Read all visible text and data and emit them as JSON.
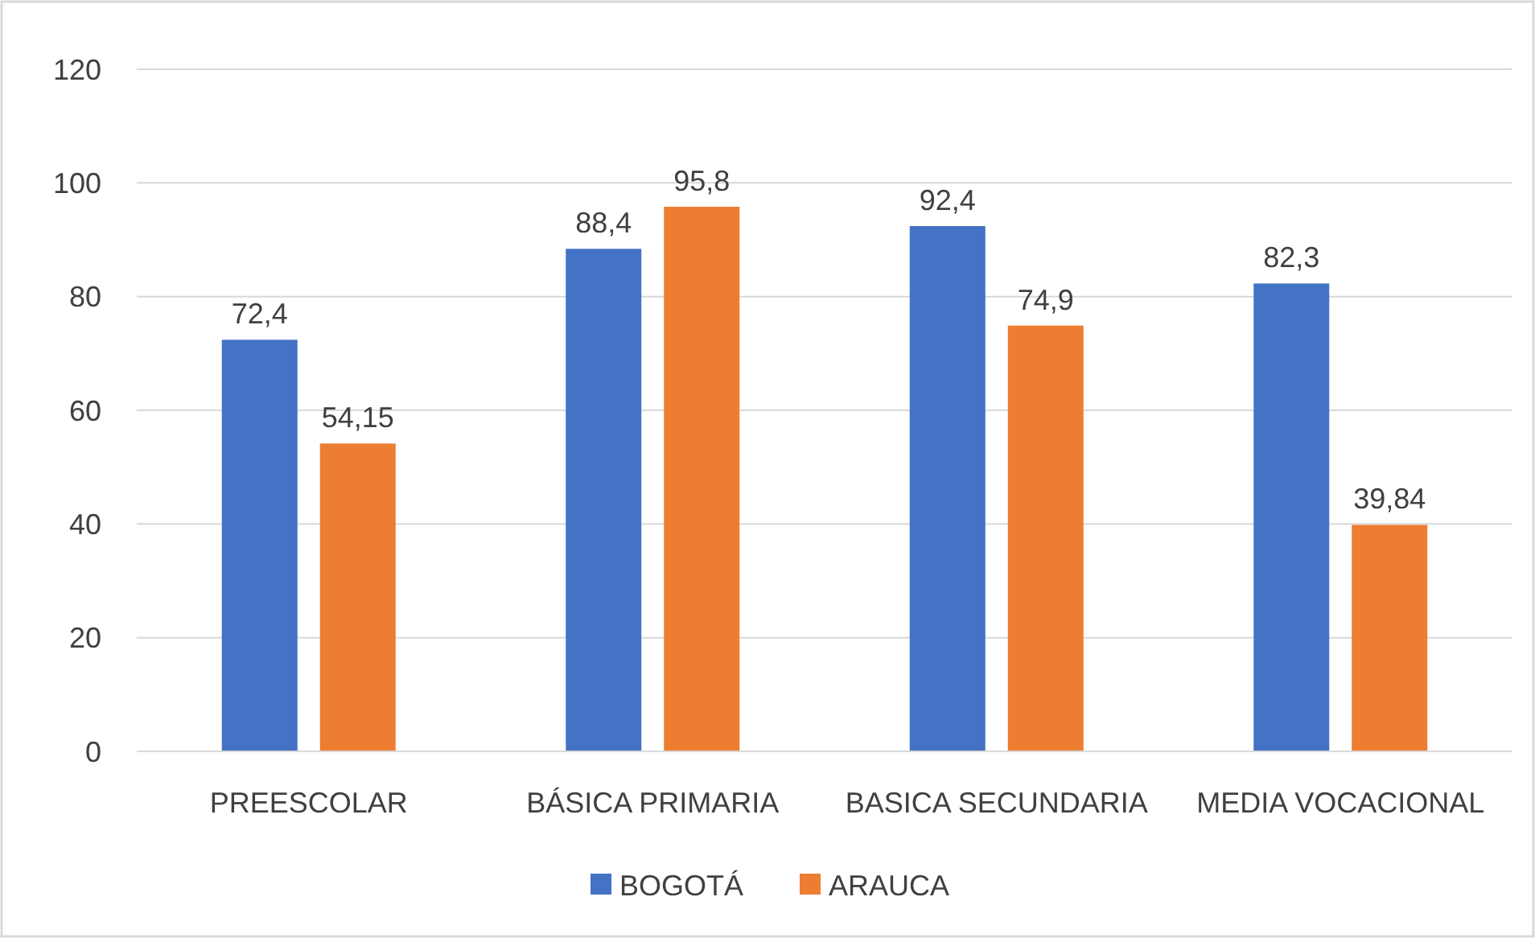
{
  "chart_data": {
    "type": "bar",
    "categories": [
      "PREESCOLAR",
      "BÁSICA PRIMARIA",
      "BASICA SECUNDARIA",
      "MEDIA VOCACIONAL"
    ],
    "series": [
      {
        "name": "BOGOTÁ",
        "color": "#4472c4",
        "values": [
          72.4,
          88.4,
          92.4,
          82.3
        ],
        "value_labels": [
          "72,4",
          "88,4",
          "92,4",
          "82,3"
        ]
      },
      {
        "name": "ARAUCA",
        "color": "#ed7d31",
        "values": [
          54.15,
          95.8,
          74.9,
          39.84
        ],
        "value_labels": [
          "54,15",
          "95,8",
          "74,9",
          "39,84"
        ]
      }
    ],
    "ylim": [
      0,
      120
    ],
    "yticks": [
      0,
      20,
      40,
      60,
      80,
      100,
      120
    ],
    "grid": "y",
    "legend": "bottom"
  }
}
